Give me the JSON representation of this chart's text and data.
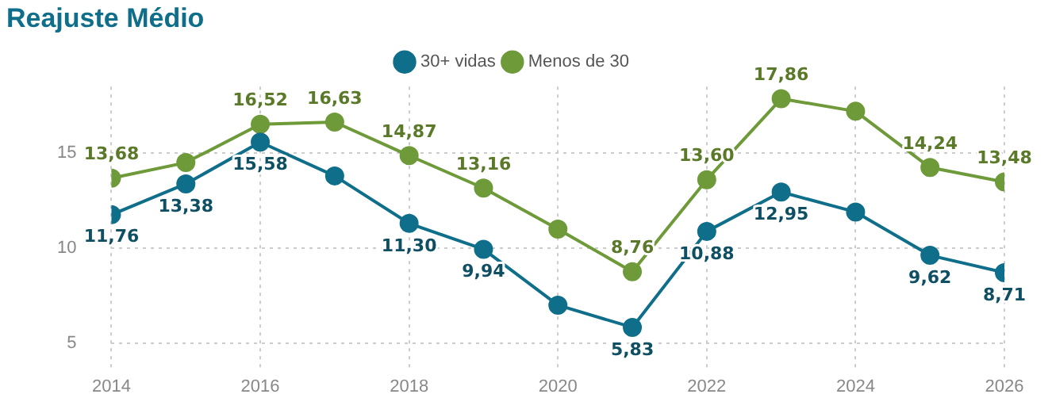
{
  "chart_data": {
    "type": "line",
    "title": "Reajuste Médio",
    "x": [
      2014,
      2015,
      2016,
      2017,
      2018,
      2019,
      2020,
      2021,
      2022,
      2023,
      2024,
      2025,
      2026
    ],
    "series": [
      {
        "name": "30+ vidas",
        "color": "#0f6f8a",
        "values": [
          11.76,
          13.38,
          15.58,
          13.8,
          11.3,
          9.94,
          7.0,
          5.83,
          10.88,
          12.95,
          11.9,
          9.62,
          8.71
        ],
        "value_labels": [
          "11,76",
          "13,38",
          "15,58",
          null,
          "11,30",
          "9,94",
          null,
          "5,83",
          "10,88",
          "12,95",
          null,
          "9,62",
          "8,71"
        ]
      },
      {
        "name": "Menos de 30",
        "color": "#6e9a3a",
        "values": [
          13.68,
          14.5,
          16.52,
          16.63,
          14.87,
          13.16,
          11.0,
          8.76,
          13.6,
          17.86,
          17.2,
          14.24,
          13.48
        ],
        "value_labels": [
          "13,68",
          null,
          "16,52",
          "16,63",
          "14,87",
          "13,16",
          null,
          "8,76",
          "13,60",
          "17,86",
          null,
          "14,24",
          "13,48"
        ]
      }
    ],
    "xlim": [
      2014,
      2026
    ],
    "xticks": [
      2014,
      2016,
      2018,
      2020,
      2022,
      2024,
      2026
    ],
    "ylim": [
      3.5,
      18.5
    ],
    "yticks": [
      5,
      10,
      15
    ],
    "grid": true,
    "legend": "top",
    "marker": "circle",
    "line_style": "solid"
  }
}
